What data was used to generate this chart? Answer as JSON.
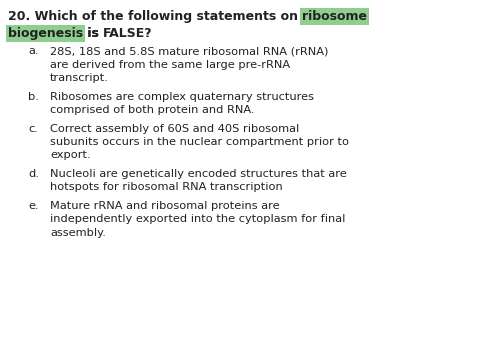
{
  "bg_color": "#ffffff",
  "highlight_color": "#8fce8f",
  "text_color": "#222222",
  "q_fontsize": 9.0,
  "opt_fontsize": 8.2,
  "options": [
    {
      "letter": "a.",
      "lines": [
        "28S, 18S and 5.8S mature ribosomal RNA (rRNA)",
        "are derived from the same large pre-rRNA",
        "transcript."
      ]
    },
    {
      "letter": "b.",
      "lines": [
        "Ribosomes are complex quaternary structures",
        "comprised of both protein and RNA."
      ]
    },
    {
      "letter": "c.",
      "lines": [
        "Correct assembly of 60S and 40S ribosomal",
        "subunits occurs in the nuclear compartment prior to",
        "export."
      ]
    },
    {
      "letter": "d.",
      "lines": [
        "Nucleoli are genetically encoded structures that are",
        "hotspots for ribosomal RNA transcription"
      ]
    },
    {
      "letter": "e.",
      "lines": [
        "Mature rRNA and ribosomal proteins are",
        "independently exported into the cytoplasm for final",
        "assembly."
      ]
    }
  ]
}
